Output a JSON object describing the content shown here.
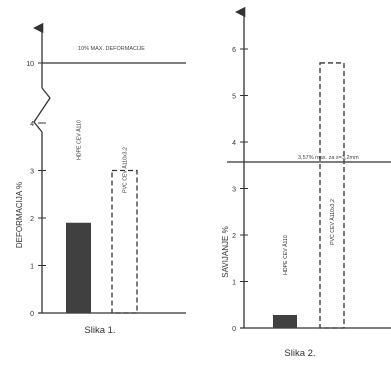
{
  "chart_data": [
    {
      "type": "bar",
      "caption": "Slika 1.",
      "ylabel": "DEFORMACIJA %",
      "ylim": [
        0,
        4.5
      ],
      "axis_break": true,
      "yticks": [
        "0",
        "1",
        "2",
        "3",
        "4",
        "10"
      ],
      "reference_line": {
        "value": 10,
        "label": "10% MAX. DEFORMACIJE"
      },
      "categories": [
        "HDPE CEV Ä110",
        "PVC CEV Ä110x3,2"
      ],
      "values": [
        1.9,
        3.0
      ],
      "bar_styles": [
        "solid",
        "dashed"
      ],
      "bar_color": "#404040"
    },
    {
      "type": "bar",
      "caption": "Slika 2.",
      "ylabel": "SAVIJANJE %",
      "ylim": [
        0,
        6.5
      ],
      "yticks": [
        "0",
        "1",
        "2",
        "3",
        "4",
        "5",
        "6"
      ],
      "reference_line": {
        "value": 3.57,
        "label": "3,57% max. za s=3,2mm"
      },
      "categories": [
        "HDPE CEV Ä110",
        "PVC CEV Ä110x3,2"
      ],
      "values": [
        0.28,
        5.7
      ],
      "bar_styles": [
        "solid",
        "dashed"
      ],
      "bar_color": "#404040"
    }
  ]
}
